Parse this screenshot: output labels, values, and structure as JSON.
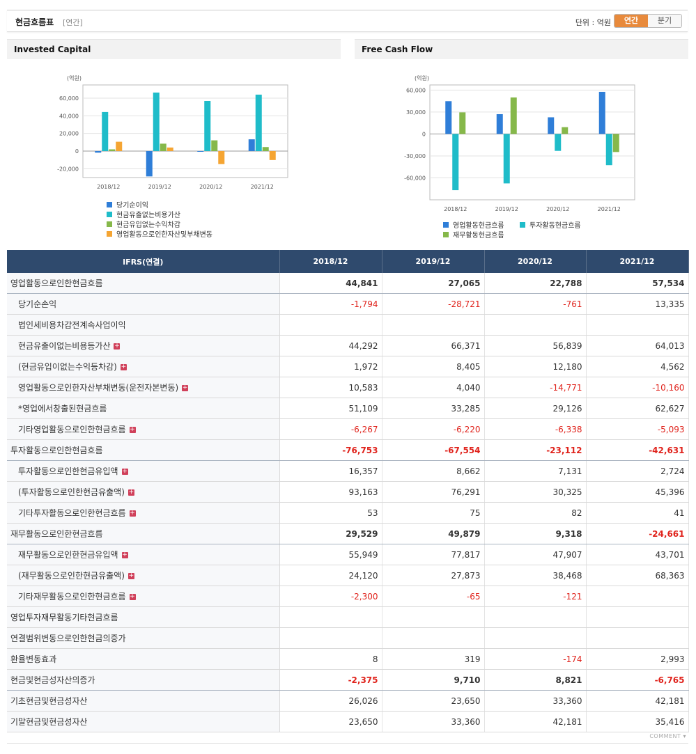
{
  "header": {
    "title": "현금흐름표",
    "period": "[연간]",
    "unit": "단위 : 억원",
    "tabs": [
      {
        "label": "연간"
      },
      {
        "label": "분기"
      }
    ]
  },
  "charts": {
    "left_title": "Invested Capital",
    "right_title": "Free Cash Flow"
  },
  "chart_data": [
    {
      "type": "bar",
      "title": "Invested Capital",
      "unit_label": "(억원)",
      "categories": [
        "2018/12",
        "2019/12",
        "2020/12",
        "2021/12"
      ],
      "ylim": [
        -30000,
        75000
      ],
      "yticks": [
        60000,
        40000,
        20000,
        0,
        -20000
      ],
      "ytick_labels": [
        "60,000",
        "40,000",
        "20,000",
        "0",
        "-20,000"
      ],
      "series": [
        {
          "name": "당기순이익",
          "color": "#2f7ed8",
          "values": [
            -1794,
            -28721,
            -761,
            13335
          ]
        },
        {
          "name": "현금유출없는비용가산",
          "color": "#1fbcc9",
          "values": [
            44292,
            66371,
            56839,
            64013
          ]
        },
        {
          "name": "현금유입없는수익차감",
          "color": "#86b84a",
          "values": [
            1972,
            8405,
            12180,
            4562
          ]
        },
        {
          "name": "영업활동으로인한자산및부채변동",
          "color": "#f5a533",
          "values": [
            10583,
            4040,
            -14771,
            -10160
          ]
        }
      ]
    },
    {
      "type": "bar",
      "title": "Free Cash Flow",
      "unit_label": "(억원)",
      "categories": [
        "2018/12",
        "2019/12",
        "2020/12",
        "2021/12"
      ],
      "ylim": [
        -90000,
        67000
      ],
      "yticks": [
        60000,
        30000,
        0,
        -30000,
        -60000
      ],
      "ytick_labels": [
        "60,000",
        "30,000",
        "0",
        "-30,000",
        "-60,000"
      ],
      "series": [
        {
          "name": "영업활동현금흐름",
          "color": "#2f7ed8",
          "values": [
            44841,
            27065,
            22788,
            57534
          ]
        },
        {
          "name": "투자활동현금흐름",
          "color": "#1fbcc9",
          "values": [
            -76753,
            -67554,
            -23112,
            -42631
          ]
        },
        {
          "name": "재무활동현금흐름",
          "color": "#86b84a",
          "values": [
            29529,
            49879,
            9318,
            -24661
          ]
        }
      ]
    }
  ],
  "table": {
    "header": [
      "IFRS(연결)",
      "2018/12",
      "2019/12",
      "2020/12",
      "2021/12"
    ],
    "rows": [
      {
        "label": "영업활동으로인한현금흐름",
        "major": true,
        "plus": false,
        "values": [
          "44,841",
          "27,065",
          "22,788",
          "57,534"
        ]
      },
      {
        "label": "당기순손익",
        "major": false,
        "plus": false,
        "values": [
          "-1,794",
          "-28,721",
          "-761",
          "13,335"
        ]
      },
      {
        "label": "법인세비용차감전계속사업이익",
        "major": false,
        "plus": false,
        "values": [
          "",
          "",
          "",
          ""
        ]
      },
      {
        "label": "현금유출이없는비용등가산",
        "major": false,
        "plus": true,
        "values": [
          "44,292",
          "66,371",
          "56,839",
          "64,013"
        ]
      },
      {
        "label": "(현금유입이없는수익등차감)",
        "major": false,
        "plus": true,
        "values": [
          "1,972",
          "8,405",
          "12,180",
          "4,562"
        ]
      },
      {
        "label": "영업활동으로인한자산부채변동(운전자본변동)",
        "major": false,
        "plus": true,
        "values": [
          "10,583",
          "4,040",
          "-14,771",
          "-10,160"
        ]
      },
      {
        "label": "*영업에서창출된현금흐름",
        "major": false,
        "plus": false,
        "values": [
          "51,109",
          "33,285",
          "29,126",
          "62,627"
        ]
      },
      {
        "label": "기타영업활동으로인한현금흐름",
        "major": false,
        "plus": true,
        "values": [
          "-6,267",
          "-6,220",
          "-6,338",
          "-5,093"
        ]
      },
      {
        "label": "투자활동으로인한현금흐름",
        "major": true,
        "plus": false,
        "values": [
          "-76,753",
          "-67,554",
          "-23,112",
          "-42,631"
        ]
      },
      {
        "label": "투자활동으로인한현금유입액",
        "major": false,
        "plus": true,
        "values": [
          "16,357",
          "8,662",
          "7,131",
          "2,724"
        ]
      },
      {
        "label": "(투자활동으로인한현금유출액)",
        "major": false,
        "plus": true,
        "values": [
          "93,163",
          "76,291",
          "30,325",
          "45,396"
        ]
      },
      {
        "label": "기타투자활동으로인한현금흐름",
        "major": false,
        "plus": true,
        "values": [
          "53",
          "75",
          "82",
          "41"
        ]
      },
      {
        "label": "재무활동으로인한현금흐름",
        "major": true,
        "plus": false,
        "values": [
          "29,529",
          "49,879",
          "9,318",
          "-24,661"
        ]
      },
      {
        "label": "재무활동으로인한현금유입액",
        "major": false,
        "plus": true,
        "values": [
          "55,949",
          "77,817",
          "47,907",
          "43,701"
        ]
      },
      {
        "label": "(재무활동으로인한현금유출액)",
        "major": false,
        "plus": true,
        "values": [
          "24,120",
          "27,873",
          "38,468",
          "68,363"
        ]
      },
      {
        "label": "기타재무활동으로인한현금흐름",
        "major": false,
        "plus": true,
        "values": [
          "-2,300",
          "-65",
          "-121",
          ""
        ]
      },
      {
        "label": "영업투자재무활동기타현금흐름",
        "major": "plain",
        "plus": false,
        "values": [
          "",
          "",
          "",
          ""
        ]
      },
      {
        "label": "연결범위변동으로인한현금의증가",
        "major": "plain",
        "plus": false,
        "values": [
          "",
          "",
          "",
          ""
        ]
      },
      {
        "label": "환율변동효과",
        "major": "plain",
        "plus": false,
        "values": [
          "8",
          "319",
          "-174",
          "2,993"
        ]
      },
      {
        "label": "현금및현금성자산의증가",
        "major": true,
        "plus": false,
        "values": [
          "-2,375",
          "9,710",
          "8,821",
          "-6,765"
        ]
      },
      {
        "label": "기초현금및현금성자산",
        "major": "plain",
        "plus": false,
        "values": [
          "26,026",
          "23,650",
          "33,360",
          "42,181"
        ]
      },
      {
        "label": "기말현금및현금성자산",
        "major": "plain",
        "plus": false,
        "values": [
          "23,650",
          "33,360",
          "42,181",
          "35,416"
        ]
      }
    ]
  },
  "footer": {
    "comment": "COMMENT"
  }
}
